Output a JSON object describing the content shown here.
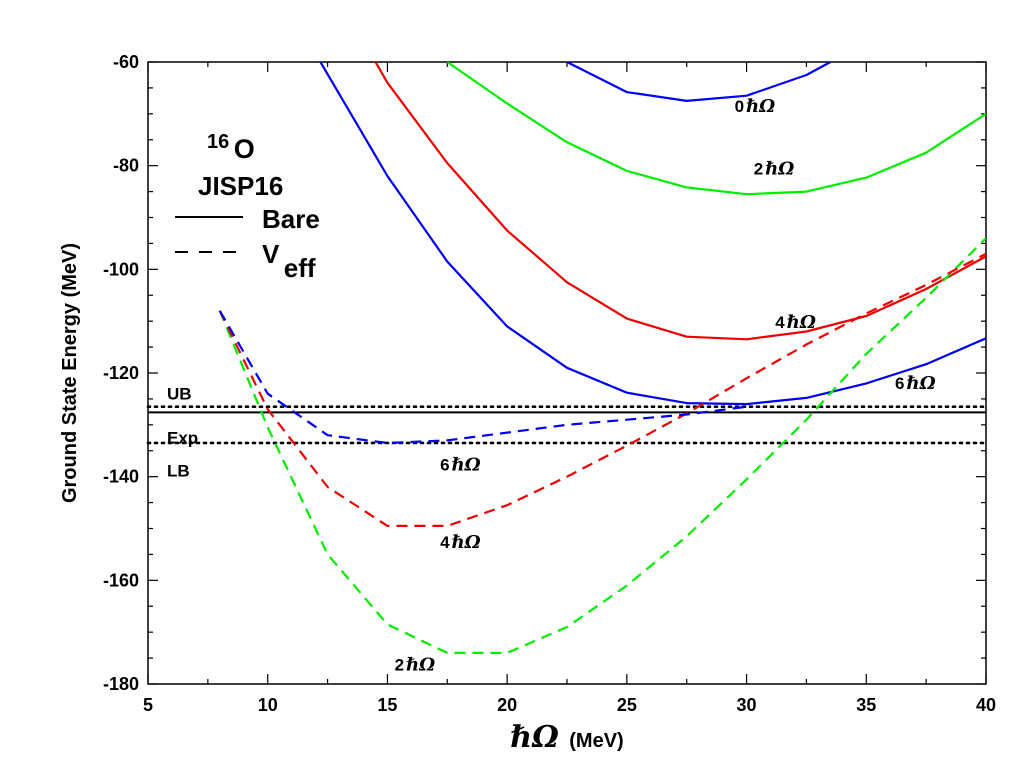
{
  "chart_data": {
    "type": "line",
    "xlabel_symbol": "ℏΩ",
    "xlabel_unit": "(MeV)",
    "ylabel": "Ground State Energy (MeV)",
    "xlim": [
      5,
      40
    ],
    "ylim": [
      -180,
      -60
    ],
    "xticks": [
      "5",
      "10",
      "15",
      "20",
      "25",
      "30",
      "35",
      "40"
    ],
    "yticks": [
      "-60",
      "-80",
      "-100",
      "-120",
      "-140",
      "-160",
      "-180"
    ],
    "legend": {
      "nucleus_mass": "16",
      "nucleus_symbol": "O",
      "interaction": "JISP16",
      "solid_label": "Bare",
      "dashed_label_main": "V",
      "dashed_label_sub": "eff"
    },
    "reference_lines": [
      {
        "label": "UB",
        "y": -126.5,
        "style": "dotted"
      },
      {
        "label": "Exp",
        "y": -127.6,
        "style": "solid"
      },
      {
        "label": "LB",
        "y": -133.5,
        "style": "dotted"
      }
    ],
    "series": [
      {
        "name": "0ℏΩ",
        "style": "solid",
        "color": "#0000ff",
        "x": [
          22.5,
          25,
          27.5,
          30,
          32.5,
          33.5
        ],
        "y": [
          -60,
          -65.8,
          -67.5,
          -66.5,
          -62.5,
          -60
        ]
      },
      {
        "name": "2ℏΩ",
        "style": "solid",
        "color": "#00ee00",
        "x": [
          17.5,
          20,
          22.5,
          25,
          27.5,
          30,
          32.5,
          35,
          37.5,
          40
        ],
        "y": [
          -60,
          -68,
          -75.5,
          -81,
          -84.2,
          -85.5,
          -85,
          -82.3,
          -77.5,
          -70
        ]
      },
      {
        "name": "4ℏΩ",
        "style": "solid",
        "color": "#ee0000",
        "x": [
          14.5,
          15,
          17.5,
          20,
          22.5,
          25,
          27.5,
          30,
          32.5,
          35,
          37.5,
          40
        ],
        "y": [
          -60,
          -64,
          -79.5,
          -92.5,
          -102.5,
          -109.5,
          -113,
          -113.5,
          -112,
          -109,
          -103.8,
          -97.5
        ]
      },
      {
        "name": "6ℏΩ",
        "style": "solid",
        "color": "#0000ee",
        "x": [
          12.2,
          15,
          17.5,
          20,
          22.5,
          25,
          27.5,
          30,
          32.5,
          35,
          37.5,
          40
        ],
        "y": [
          -60,
          -82,
          -98.5,
          -111,
          -119,
          -123.8,
          -125.8,
          -126,
          -124.8,
          -122,
          -118.3,
          -113.3
        ]
      },
      {
        "name": "2ℏΩ",
        "style": "dashed",
        "color": "#00ee00",
        "x": [
          8,
          10,
          12.5,
          15,
          17.5,
          20,
          22.5,
          25,
          27.5,
          30,
          32.5,
          35,
          37.5,
          40
        ],
        "y": [
          -108,
          -130.5,
          -155,
          -168.5,
          -174,
          -174,
          -169,
          -161,
          -151.5,
          -140.5,
          -129,
          -116.3,
          -105.5,
          -94
        ]
      },
      {
        "name": "4ℏΩ",
        "style": "dashed",
        "color": "#ee0000",
        "x": [
          8,
          10,
          12.5,
          15,
          17.5,
          20,
          22.5,
          25,
          27.5,
          30,
          32.5,
          35,
          37.5,
          40
        ],
        "y": [
          -108,
          -127,
          -142,
          -149.5,
          -149.5,
          -145.5,
          -140,
          -134,
          -127.8,
          -121,
          -114.5,
          -108.5,
          -103,
          -97
        ]
      },
      {
        "name": "6ℏΩ",
        "style": "dashed",
        "color": "#0000ee",
        "x": [
          8,
          10,
          12.5,
          15,
          17.5,
          20,
          22.5,
          25,
          27.5,
          30
        ],
        "y": [
          -108,
          -124,
          -132,
          -133.5,
          -133,
          -131.5,
          -130,
          -129,
          -128,
          -126.5
        ]
      }
    ],
    "curve_labels": [
      {
        "prefix": "0",
        "symbol": "ℏΩ",
        "x": 29.5,
        "y": -69.6
      },
      {
        "prefix": "2",
        "symbol": "ℏΩ",
        "x": 30.3,
        "y": -81.7
      },
      {
        "prefix": "4",
        "symbol": "ℏΩ",
        "x": 31.2,
        "y": -111.3
      },
      {
        "prefix": "6",
        "symbol": "ℏΩ",
        "x": 36.2,
        "y": -123.1
      },
      {
        "prefix": "6",
        "symbol": "ℏΩ",
        "x": 17.2,
        "y": -138.8
      },
      {
        "prefix": "4",
        "symbol": "ℏΩ",
        "x": 17.2,
        "y": -153.8
      },
      {
        "prefix": "2",
        "symbol": "ℏΩ",
        "x": 15.3,
        "y": -177.4
      }
    ]
  }
}
